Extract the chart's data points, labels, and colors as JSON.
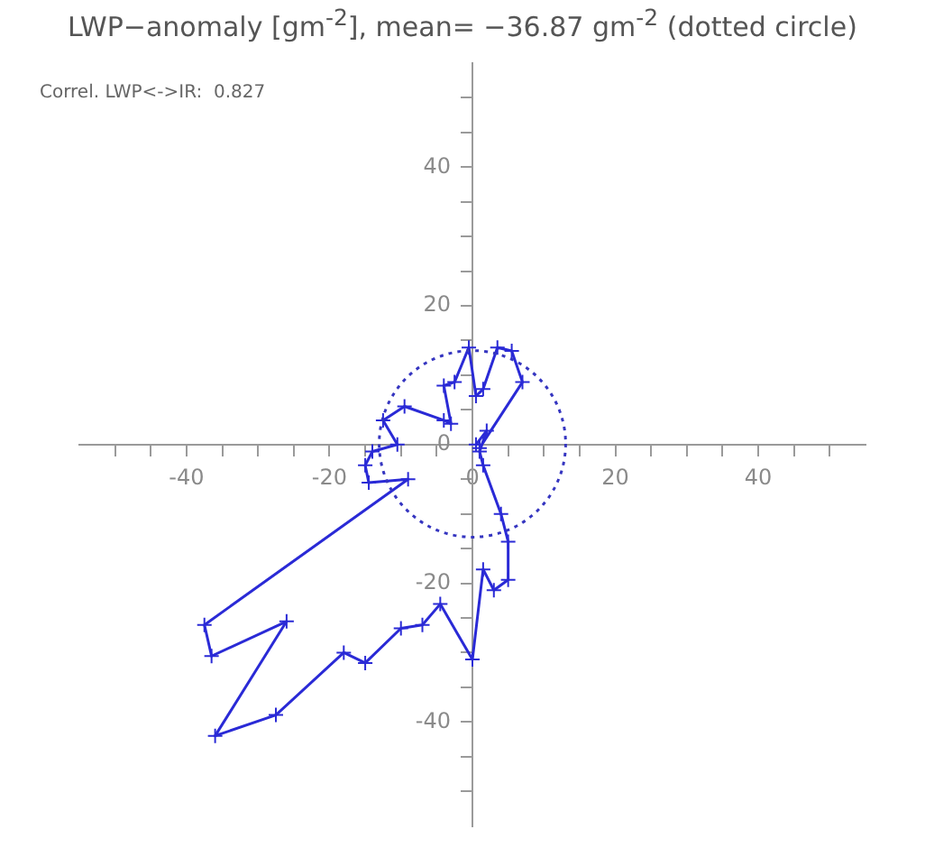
{
  "chart_data": {
    "type": "line",
    "title": "LWP−anomaly [gm$^{-2}$], mean= −36.87 gm$^{-2}$ (dotted circle)",
    "annotations": [
      "Correl. LWP<->IR:  0.827"
    ],
    "xlim": [
      -55,
      55
    ],
    "ylim": [
      -55,
      55
    ],
    "xticks": [
      {
        "value": -50,
        "label": null
      },
      {
        "value": -45,
        "label": null
      },
      -40,
      {
        "value": -35,
        "label": null
      },
      {
        "value": -30,
        "label": null
      },
      {
        "value": -25,
        "label": null
      },
      -20,
      {
        "value": -15,
        "label": null
      },
      {
        "value": -10,
        "label": null
      },
      {
        "value": -5,
        "label": null
      },
      0,
      {
        "value": 5,
        "label": null
      },
      {
        "value": 10,
        "label": null
      },
      {
        "value": 15,
        "label": null
      },
      20,
      {
        "value": 25,
        "label": null
      },
      {
        "value": 30,
        "label": null
      },
      {
        "value": 35,
        "label": null
      },
      40,
      {
        "value": 45,
        "label": null
      },
      {
        "value": 50,
        "label": null
      }
    ],
    "yticks": [
      {
        "value": -50,
        "label": null
      },
      {
        "value": -45,
        "label": null
      },
      -40,
      {
        "value": -35,
        "label": null
      },
      {
        "value": -30,
        "label": null
      },
      {
        "value": -25,
        "label": null
      },
      -20,
      {
        "value": -15,
        "label": null
      },
      {
        "value": -10,
        "label": null
      },
      {
        "value": -5,
        "label": null
      },
      0,
      {
        "value": 5,
        "label": null
      },
      {
        "value": 10,
        "label": null
      },
      {
        "value": 15,
        "label": null
      },
      20,
      {
        "value": 25,
        "label": null
      },
      {
        "value": 30,
        "label": null
      },
      {
        "value": 35,
        "label": null
      },
      40,
      {
        "value": 45,
        "label": null
      },
      {
        "value": 50,
        "label": null
      }
    ],
    "grid": false,
    "legend": false,
    "series": [
      {
        "color": "#2a2ad6",
        "marker": "cross",
        "line_style": "solid",
        "x": [
          0.5,
          2,
          1,
          1.5,
          4,
          5,
          5,
          3,
          1.5,
          0,
          -4.5,
          -7,
          -10,
          -15,
          -18,
          -27.5,
          -36,
          -26,
          -36.5,
          -37.5,
          -9,
          -14.5,
          -15,
          -14,
          -10.5,
          -12.5,
          -9.5,
          -4,
          -3,
          -4,
          -2.5,
          -0.5,
          0.5,
          1.5,
          3.5,
          5.5,
          7,
          1
        ],
        "values": [
          0,
          2,
          -1,
          -3,
          -10,
          -14,
          -19.5,
          -21,
          -18,
          -31,
          -23,
          -26,
          -26.5,
          -31.5,
          -30,
          -39,
          -42,
          -25.5,
          -30.5,
          -26,
          -5,
          -5.5,
          -3,
          -1,
          0,
          3.5,
          5.5,
          3.5,
          3,
          8.5,
          9,
          14,
          7,
          8,
          14,
          13.5,
          9,
          -0.5
        ]
      }
    ]
  }
}
